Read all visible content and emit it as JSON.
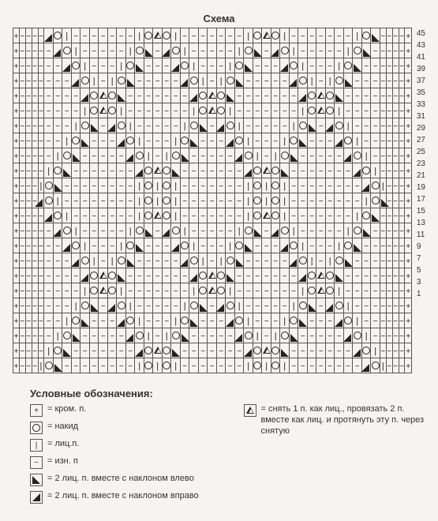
{
  "title": "Схема",
  "symbols": {
    "P": "+",
    "D": "−",
    "K": "|",
    "O": "○",
    "L": "◣",
    "R": "◢",
    "A": "▲"
  },
  "row_numbers": [
    45,
    43,
    41,
    39,
    37,
    35,
    33,
    31,
    29,
    27,
    25,
    23,
    21,
    19,
    17,
    15,
    13,
    11,
    9,
    7,
    5,
    3,
    1
  ],
  "legend_title": "Условные обозначения:",
  "legend_left": [
    {
      "sym": "+",
      "text": "= кром. п."
    },
    {
      "sym": "○",
      "text": "= накид"
    },
    {
      "sym": "|",
      "text": "= лиц.п."
    },
    {
      "sym": "−",
      "text": "= изн. п"
    },
    {
      "sym": "◣",
      "text": "= 2 лиц. п. вместе с наклоном влево"
    },
    {
      "sym": "◢",
      "text": "= 2 лиц. п. вместе с наклоном вправо"
    }
  ],
  "legend_right": [
    {
      "sym": "▲",
      "text": "= снять 1 п. как лиц., провязать 2 п. вместе как лиц. и протянуть эту п. через снятую"
    }
  ],
  "grid": [
    "PDDDDROKDDDDDDDKOAOKDDDDDDDKOAOKDDDDDDDKOLDDDDP",
    "PDDDDDROKDDDDDKOLDROKDDDDDKOLDROKDDDDDKOLDDDDDP",
    "PDDDDDDROKDDDKOLDDDROKDDDKOLDDDROKDDDKOLDDDDDDP",
    "PDDDDDDDROKDKOLDDDDDROKDKOLDDDDDROKDKOLDDDDDDDP",
    "PDDDDDDDDROAOLDDDDDDDROAOLDDDDDDDROAOLDDDDDDDDP",
    "PDDDDDDDDKOAOKDDDDDDDKOAOKDDDDDDDKOAOKDDDDDDDDP",
    "PDDDDDDDKOLDROKDDDDDKOLDROKDDDDDKOLDROKDDDDDDDP",
    "PDDDDDDKOLDDDROKDDDKOLDDDROKDDDKOLDDDROKDDDDDDP",
    "PDDDDDKOLDDDDDROKDKOLDDDDDROKDKOLDDDDDROKDDDDDP",
    "PDDDDKOLDDDDDDDROAOLDDDDDDDROAOLDDDDDDDROKDDDDP",
    "PDDDKOLDDDDDDDDKOKOKDDDDDDDKOKOKDDDDDDDDROKDDDP",
    "PDDDROKDDDDDDDDKOKOKDDDDDDDKOKOKDDDDDDDDKOLDDDP",
    "PDDDDROKDDDDDDDKOAOKDDDDDDDKOAOKDDDDDDDKOLDDDDP",
    "PDDDDDROKDDDDDKOLDROKDDDDDKOLDROKDDDDDKOLDDDDDP",
    "PDDDDDDROKDDDKOLDDDROKDDDKOLDDDROKDDDKOLDDDDDDP",
    "PDDDDDDDROKDKOLDDDDDROKDKOLDDDDDROKDKOLDDDDDDDP",
    "PDDDDDDDDROAOLDDDDDDDROAOLDDDDDDDROAOLDDDDDDDDP",
    "PDDDDDDDDKOAOKDDDDDDDKOAOKDDDDDDDKOAOKDDDDDDDDP",
    "PDDDDDDDKOLDROKDDDDDKOLDROKDDDDDKOLDROKDDDDDDDP",
    "PDDDDDDKOLDDDROKDDDKOLDDDROKDDDKOLDDDROKDDDDDDP",
    "PDDDDDKOLDDDDDROKDKOLDDDDDROKDKOLDDDDDROKDDDDDP",
    "PDDDDKOLDDDDDDDROAOLDDDDDDDROAOLDDDDDDDROKDDDDP",
    "PDDDKOLDDDDDDDDKOKOKDDDDDDDKOKOKDDDDDDDDROKDDDP"
  ],
  "colors": {
    "bg": "#f5f4f2",
    "line": "#555555",
    "symbol": "#222222"
  }
}
